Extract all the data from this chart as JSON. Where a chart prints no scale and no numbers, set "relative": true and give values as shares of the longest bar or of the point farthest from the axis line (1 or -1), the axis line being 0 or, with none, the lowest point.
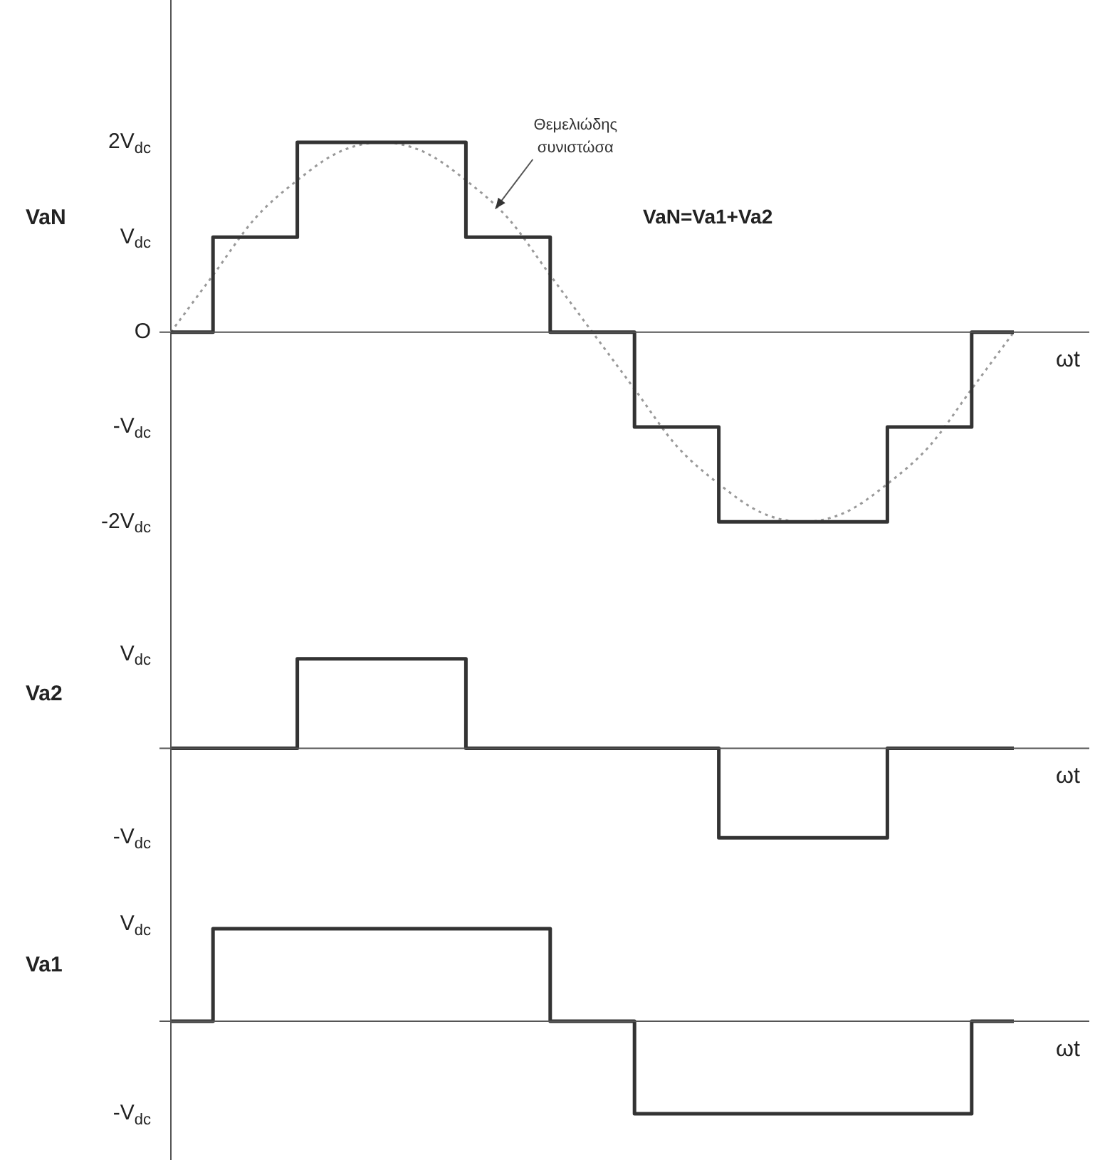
{
  "chart_data": [
    {
      "type": "step",
      "ylabel": "VaN",
      "xlabel": "ωt",
      "tick_labels": "y",
      "categories": [
        null,
        null,
        null,
        null,
        null,
        null,
        null,
        null,
        null,
        null,
        null,
        null,
        null,
        null,
        null,
        null,
        null,
        null,
        null,
        null,
        null
      ],
      "series": [
        {
          "color": "#333333",
          "values": [
            0,
            1,
            1,
            2,
            2,
            2,
            2,
            1,
            1,
            0,
            0,
            -1,
            -1,
            -2,
            -2,
            -2,
            -2,
            -1,
            -1,
            0,
            0
          ]
        },
        {
          "type": "line",
          "line_style": "dotted",
          "color": "#999999",
          "values": [
            0,
            0.6,
            1.2,
            1.6,
            1.9,
            2,
            1.9,
            1.6,
            1.2,
            0.6,
            0,
            -0.6,
            -1.2,
            -1.6,
            -1.9,
            -2,
            -1.9,
            -1.6,
            -1.2,
            -0.6,
            0
          ]
        }
      ],
      "ylim": [
        -2.5,
        3.5
      ],
      "yticks": [
        {
          "value": 2,
          "label": "2V$_{dc}$"
        },
        {
          "value": 1,
          "label": "V$_{dc}$"
        },
        {
          "value": 0,
          "label": "O"
        },
        {
          "value": -1,
          "label": "-V$_{dc}$"
        },
        {
          "value": -2,
          "label": "-2V$_{dc}$"
        }
      ],
      "annotations": [
        "Θεμελιώδης συνιστώσα",
        "VaN=Va1+Va2"
      ]
    },
    {
      "type": "step",
      "ylabel": "Va2",
      "xlabel": "ωt",
      "tick_labels": false,
      "relative": true,
      "categories": [
        null,
        null,
        null,
        null,
        null,
        null,
        null,
        null,
        null,
        null,
        null,
        null,
        null,
        null,
        null,
        null,
        null,
        null,
        null,
        null,
        null
      ],
      "series": [
        {
          "color": "#333333",
          "values": [
            0,
            0,
            0,
            1,
            1,
            1,
            1,
            0,
            0,
            0,
            0,
            0,
            0,
            -1,
            -1,
            -1,
            -1,
            0,
            0,
            0,
            0
          ]
        }
      ],
      "annotations": [
        "V$_{dc}$",
        "-V$_{dc}$"
      ]
    },
    {
      "type": "step",
      "ylabel": "Va1",
      "xlabel": "ωt",
      "tick_labels": false,
      "relative": true,
      "categories": [
        null,
        null,
        null,
        null,
        null,
        null,
        null,
        null,
        null,
        null,
        null,
        null,
        null,
        null,
        null,
        null,
        null,
        null,
        null,
        null,
        null
      ],
      "series": [
        {
          "color": "#333333",
          "values": [
            0,
            1,
            1,
            1,
            1,
            1,
            1,
            1,
            1,
            0,
            0,
            -1,
            -1,
            -1,
            -1,
            -1,
            -1,
            -1,
            -1,
            0,
            0
          ]
        }
      ],
      "annotations": [
        "V$_{dc}$",
        "-V$_{dc}$"
      ]
    }
  ]
}
